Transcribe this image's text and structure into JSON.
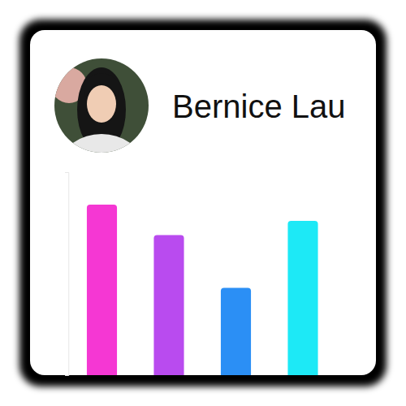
{
  "chart_data": {
    "type": "bar",
    "title": "Bernice Lau",
    "categories": [
      null,
      null,
      null,
      null
    ],
    "values": [
      84,
      69,
      43,
      76
    ],
    "colors": [
      "#f537d3",
      "#b94bef",
      "#2b8ff5",
      "#1de9f6"
    ],
    "ylim": [
      0,
      100
    ],
    "yticks": [
      0,
      100
    ],
    "tick_labels": false
  }
}
